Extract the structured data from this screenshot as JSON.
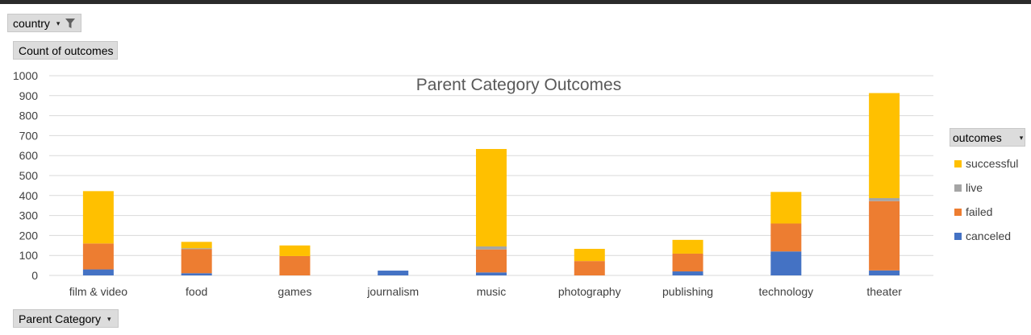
{
  "filters": {
    "country_label": "country",
    "count_label": "Count of outcomes",
    "outcomes_label": "outcomes",
    "category_label": "Parent Category"
  },
  "colors": {
    "successful": "#FFC000",
    "live": "#A5A5A5",
    "failed": "#ED7D31",
    "canceled": "#4472C4"
  },
  "chart_data": {
    "type": "bar",
    "stacked": true,
    "title": "Parent Category Outcomes",
    "categories": [
      "film & video",
      "food",
      "games",
      "journalism",
      "music",
      "photography",
      "publishing",
      "technology",
      "theater"
    ],
    "series": [
      {
        "name": "canceled",
        "values": [
          30,
          11,
          0,
          24,
          15,
          0,
          20,
          120,
          25
        ]
      },
      {
        "name": "failed",
        "values": [
          130,
          120,
          97,
          0,
          115,
          72,
          89,
          140,
          347
        ]
      },
      {
        "name": "live",
        "values": [
          0,
          5,
          0,
          0,
          15,
          0,
          0,
          0,
          15
        ]
      },
      {
        "name": "successful",
        "values": [
          262,
          32,
          53,
          0,
          488,
          61,
          69,
          158,
          526
        ]
      }
    ],
    "ylim": [
      0,
      1000
    ],
    "yticks": [
      0,
      100,
      200,
      300,
      400,
      500,
      600,
      700,
      800,
      900,
      1000
    ],
    "grid": true,
    "legend": "right",
    "legend_order": [
      "successful",
      "live",
      "failed",
      "canceled"
    ]
  }
}
